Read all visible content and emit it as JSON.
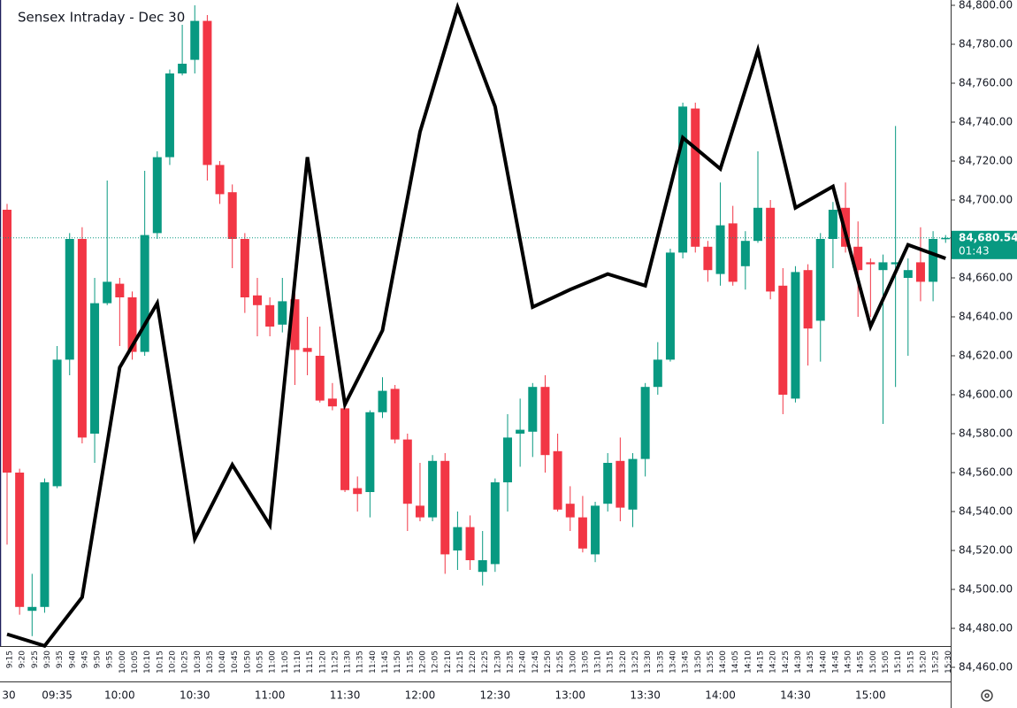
{
  "chart_data": {
    "type": "candlestick",
    "title": "Sensex Intraday - Dec 30",
    "categories": [
      "9:15",
      "9:20",
      "9:25",
      "9:30",
      "9:35",
      "9:40",
      "9:45",
      "9:50",
      "9:55",
      "10:00",
      "10:05",
      "10:10",
      "10:15",
      "10:20",
      "10:25",
      "10:30",
      "10:35",
      "10:40",
      "10:45",
      "10:50",
      "10:55",
      "11:00",
      "11:05",
      "11:10",
      "11:15",
      "11:20",
      "11:25",
      "11:30",
      "11:35",
      "11:40",
      "11:45",
      "11:50",
      "11:55",
      "12:00",
      "12:05",
      "12:10",
      "12:15",
      "12:20",
      "12:25",
      "12:30",
      "12:35",
      "12:40",
      "12:45",
      "12:50",
      "12:55",
      "13:00",
      "13:05",
      "13:10",
      "13:15",
      "13:20",
      "13:25",
      "13:30",
      "13:35",
      "13:40",
      "13:45",
      "13:50",
      "13:55",
      "14:00",
      "14:05",
      "14:10",
      "14:15",
      "14:20",
      "14:25",
      "14:30",
      "14:35",
      "14:40",
      "14:45",
      "14:50",
      "14:55",
      "15:00",
      "15:05",
      "15:10",
      "15:15",
      "15:20",
      "15:25",
      "15:30"
    ],
    "open": [
      84695,
      84560,
      84489,
      84491,
      84553,
      84618,
      84680,
      84580,
      84647,
      84657,
      84650,
      84622,
      84683,
      84722,
      84765,
      84772,
      84792,
      84718,
      84704,
      84680,
      84651,
      84646,
      84636,
      84649,
      84624,
      84620,
      84598,
      84593,
      84552,
      84550,
      84591,
      84603,
      84577,
      84543,
      84537,
      84566,
      84520,
      84532,
      84509,
      84513,
      84555,
      84580,
      84581,
      84604,
      84571,
      84544,
      84537,
      84518,
      84544,
      84566,
      84541,
      84567,
      84604,
      84618,
      84673,
      84747,
      84676,
      84662,
      84688,
      84666,
      84679,
      84696,
      84656,
      84598,
      84664,
      84638,
      84680,
      84696,
      84676,
      84668,
      84664,
      84667,
      84660,
      84668,
      84658,
      84680
    ],
    "high": [
      84698,
      84562,
      84508,
      84557,
      84625,
      84683,
      84686,
      84660,
      84710,
      84660,
      84653,
      84715,
      84725,
      84767,
      84790,
      84800,
      84795,
      84720,
      84708,
      84683,
      84660,
      84650,
      84660,
      84652,
      84640,
      84635,
      84606,
      84595,
      84558,
      84592,
      84609,
      84605,
      84580,
      84565,
      84569,
      84570,
      84540,
      84538,
      84530,
      84557,
      84590,
      84598,
      84606,
      84610,
      84580,
      84553,
      84548,
      84545,
      84570,
      84578,
      84570,
      84606,
      84627,
      84675,
      84750,
      84750,
      84679,
      84709,
      84697,
      84684,
      84725,
      84700,
      84665,
      84666,
      84667,
      84683,
      84699,
      84709,
      84689,
      84670,
      84672,
      84738,
      84670,
      84686,
      84684,
      84682
    ],
    "low": [
      84523,
      84487,
      84476,
      84488,
      84552,
      84610,
      84575,
      84565,
      84646,
      84625,
      84618,
      84620,
      84680,
      84718,
      84764,
      84765,
      84710,
      84698,
      84665,
      84642,
      84630,
      84630,
      84632,
      84605,
      84610,
      84596,
      84592,
      84550,
      84540,
      84537,
      84588,
      84575,
      84530,
      84535,
      84535,
      84508,
      84510,
      84510,
      84502,
      84509,
      84540,
      84563,
      84568,
      84560,
      84540,
      84530,
      84519,
      84514,
      84540,
      84535,
      84532,
      84558,
      84600,
      84617,
      84670,
      84673,
      84658,
      84656,
      84656,
      84654,
      84678,
      84649,
      84590,
      84596,
      84615,
      84617,
      84665,
      84673,
      84640,
      84640,
      84585,
      84604,
      84620,
      84648,
      84648,
      84678
    ],
    "close": [
      84560,
      84491,
      84491,
      84555,
      84618,
      84680,
      84578,
      84647,
      84658,
      84650,
      84622,
      84682,
      84722,
      84765,
      84770,
      84792,
      84718,
      84703,
      84680,
      84650,
      84646,
      84635,
      84648,
      84623,
      84622,
      84597,
      84594,
      84551,
      84549,
      84591,
      84602,
      84577,
      84544,
      84537,
      84566,
      84518,
      84532,
      84515,
      84515,
      84555,
      84578,
      84582,
      84604,
      84569,
      84541,
      84537,
      84521,
      84543,
      84565,
      84542,
      84567,
      84604,
      84618,
      84673,
      84748,
      84676,
      84664,
      84687,
      84658,
      84679,
      84696,
      84653,
      84600,
      84663,
      84634,
      84680,
      84695,
      84676,
      84664,
      84667,
      84668,
      84668,
      84664,
      84658,
      84680,
      84680.54
    ],
    "up_color": "#089981",
    "down_color": "#f23645",
    "line": {
      "color": "#000000",
      "x": [
        "9:15",
        "9:30",
        "9:45",
        "10:00",
        "10:15",
        "10:30",
        "10:45",
        "11:00",
        "11:15",
        "11:30",
        "11:45",
        "12:00",
        "12:15",
        "12:30",
        "12:45",
        "13:00",
        "13:15",
        "13:30",
        "13:45",
        "14:00",
        "14:15",
        "14:30",
        "14:45",
        "15:00",
        "15:15",
        "15:30"
      ],
      "values": [
        84477,
        84471,
        84496,
        84614,
        84647,
        84526,
        84564,
        84533,
        84722,
        84595,
        84633,
        84735,
        84799,
        84748,
        84645,
        84654,
        84662,
        84656,
        84732,
        84716,
        84777,
        84696,
        84707,
        84635,
        84677,
        84670
      ]
    },
    "ylim": [
      84460,
      84800
    ],
    "yticks": [
      {
        "value": 84460,
        "label": "84,460.00"
      },
      {
        "value": 84480,
        "label": "84,480.00"
      },
      {
        "value": 84500,
        "label": "84,500.00"
      },
      {
        "value": 84520,
        "label": "84,520.00"
      },
      {
        "value": 84540,
        "label": "84,540.00"
      },
      {
        "value": 84560,
        "label": "84,560.00"
      },
      {
        "value": 84580,
        "label": "84,580.00"
      },
      {
        "value": 84600,
        "label": "84,600.00"
      },
      {
        "value": 84620,
        "label": "84,620.00"
      },
      {
        "value": 84640,
        "label": "84,640.00"
      },
      {
        "value": 84660,
        "label": "84,660.00"
      },
      {
        "value": 84680,
        "label": "84,680.00"
      },
      {
        "value": 84700,
        "label": "84,700.00"
      },
      {
        "value": 84720,
        "label": "84,720.00"
      },
      {
        "value": 84740,
        "label": "84,740.00"
      },
      {
        "value": 84760,
        "label": "84,760.00"
      },
      {
        "value": 84780,
        "label": "84,780.00"
      },
      {
        "value": 84800,
        "label": "84,800.00"
      }
    ],
    "last_price": {
      "value": 84680.54,
      "label": "84,680.54"
    },
    "countdown": "01:43",
    "time_labels": [
      "30",
      "09:35",
      "10:00",
      "10:30",
      "11:00",
      "11:30",
      "12:00",
      "12:30",
      "13:00",
      "13:30",
      "14:00",
      "14:30",
      "15:00"
    ]
  }
}
